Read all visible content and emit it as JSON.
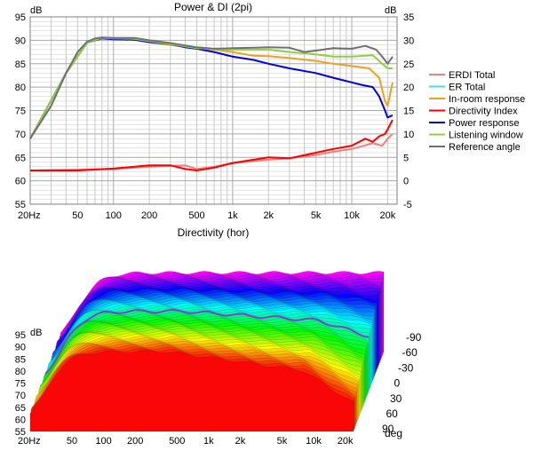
{
  "colors": {
    "grid": "#c8c8c8",
    "grid_major": "#a8a8a8",
    "axis": "#808080",
    "ERDI Total": "#f08080",
    "ER Total": "#40e0e8",
    "In-room response": "#f0a020",
    "Directivity Index": "#ff0000",
    "Power response": "#0000e0",
    "Listening window": "#90d040",
    "Reference angle": "#707070"
  },
  "chart_data": [
    {
      "type": "line",
      "title": "Power & DI (2pi)",
      "ylabel_left": "dB",
      "ylabel_right": "dB",
      "xscale": "log",
      "xlim": [
        20,
        24000
      ],
      "ylim_left": [
        55,
        95
      ],
      "ylim_right": [
        -5,
        35
      ],
      "grid": true,
      "legend_position": "right",
      "x_ticks": [
        {
          "v": 20,
          "label": "20Hz"
        },
        {
          "v": 50,
          "label": "50"
        },
        {
          "v": 100,
          "label": "100"
        },
        {
          "v": 200,
          "label": "200"
        },
        {
          "v": 500,
          "label": "500"
        },
        {
          "v": 1000,
          "label": "1k"
        },
        {
          "v": 2000,
          "label": "2k"
        },
        {
          "v": 5000,
          "label": "5k"
        },
        {
          "v": 10000,
          "label": "10k"
        },
        {
          "v": 20000,
          "label": "20k"
        }
      ],
      "y_ticks_left": [
        95,
        90,
        85,
        80,
        75,
        70,
        65,
        60,
        55
      ],
      "y_ticks_right": [
        35,
        30,
        25,
        20,
        15,
        10,
        5,
        0,
        -5
      ],
      "series": [
        {
          "name": "ERDI Total",
          "axis": "right",
          "points": [
            [
              20,
              2.2
            ],
            [
              100,
              2.5
            ],
            [
              200,
              3
            ],
            [
              400,
              3.3
            ],
            [
              500,
              2.5
            ],
            [
              700,
              3
            ],
            [
              1000,
              3.8
            ],
            [
              2000,
              4.5
            ],
            [
              3000,
              4.8
            ],
            [
              5000,
              5.5
            ],
            [
              7000,
              6.2
            ],
            [
              10000,
              6.8
            ],
            [
              15000,
              8
            ],
            [
              18000,
              7.5
            ],
            [
              20000,
              9
            ],
            [
              22000,
              10
            ]
          ]
        },
        {
          "name": "ER Total",
          "axis": "left",
          "points": []
        },
        {
          "name": "In-room response",
          "axis": "left",
          "points": [
            [
              20,
              69
            ],
            [
              40,
              83
            ],
            [
              60,
              89.5
            ],
            [
              80,
              90.5
            ],
            [
              100,
              90.3
            ],
            [
              150,
              90.2
            ],
            [
              200,
              89.6
            ],
            [
              300,
              89
            ],
            [
              400,
              88.6
            ],
            [
              500,
              88.4
            ],
            [
              700,
              88
            ],
            [
              1000,
              87.5
            ],
            [
              1500,
              86.7
            ],
            [
              2000,
              86.6
            ],
            [
              3000,
              86.2
            ],
            [
              5000,
              85.6
            ],
            [
              7000,
              85
            ],
            [
              10000,
              84.5
            ],
            [
              14000,
              84
            ],
            [
              17000,
              82
            ],
            [
              19000,
              77
            ],
            [
              20000,
              76
            ],
            [
              22000,
              81
            ]
          ]
        },
        {
          "name": "Directivity Index",
          "axis": "right",
          "points": [
            [
              20,
              2.2
            ],
            [
              50,
              2.2
            ],
            [
              100,
              2.6
            ],
            [
              200,
              3.3
            ],
            [
              300,
              3.3
            ],
            [
              400,
              2.5
            ],
            [
              500,
              2.2
            ],
            [
              700,
              2.8
            ],
            [
              1000,
              3.8
            ],
            [
              1500,
              4.5
            ],
            [
              2000,
              5
            ],
            [
              3000,
              4.8
            ],
            [
              5000,
              6
            ],
            [
              7000,
              6.8
            ],
            [
              10000,
              7.5
            ],
            [
              13000,
              9
            ],
            [
              15000,
              8.3
            ],
            [
              17000,
              9.5
            ],
            [
              19000,
              10
            ],
            [
              20000,
              11
            ],
            [
              22000,
              13
            ]
          ]
        },
        {
          "name": "Power response",
          "axis": "left",
          "points": [
            [
              20,
              69
            ],
            [
              40,
              83
            ],
            [
              60,
              89.5
            ],
            [
              80,
              90.4
            ],
            [
              100,
              90.2
            ],
            [
              150,
              90.1
            ],
            [
              200,
              89.6
            ],
            [
              300,
              89.2
            ],
            [
              400,
              88.5
            ],
            [
              500,
              88.2
            ],
            [
              700,
              87.5
            ],
            [
              1000,
              86.5
            ],
            [
              1500,
              85.8
            ],
            [
              2000,
              85
            ],
            [
              3000,
              84
            ],
            [
              5000,
              83
            ],
            [
              7000,
              82
            ],
            [
              10000,
              81
            ],
            [
              12000,
              80.5
            ],
            [
              15000,
              80
            ],
            [
              17000,
              78
            ],
            [
              19000,
              75
            ],
            [
              20000,
              73.5
            ],
            [
              22000,
              74
            ]
          ]
        },
        {
          "name": "Listening window",
          "axis": "left",
          "points": [
            [
              20,
              69
            ],
            [
              40,
              83
            ],
            [
              60,
              89.5
            ],
            [
              80,
              90.5
            ],
            [
              100,
              90.4
            ],
            [
              150,
              90.3
            ],
            [
              200,
              89.8
            ],
            [
              300,
              89.2
            ],
            [
              500,
              88.3
            ],
            [
              700,
              88.1
            ],
            [
              1000,
              88
            ],
            [
              1500,
              88
            ],
            [
              2000,
              88
            ],
            [
              3000,
              87.5
            ],
            [
              5000,
              87
            ],
            [
              7000,
              86.5
            ],
            [
              10000,
              86.5
            ],
            [
              15000,
              86.8
            ],
            [
              18000,
              85
            ],
            [
              20000,
              84
            ],
            [
              22000,
              84
            ]
          ]
        },
        {
          "name": "Reference angle",
          "axis": "left",
          "points": [
            [
              20,
              69
            ],
            [
              30,
              76
            ],
            [
              40,
              83
            ],
            [
              50,
              87.5
            ],
            [
              60,
              89.7
            ],
            [
              70,
              90.4
            ],
            [
              80,
              90.6
            ],
            [
              100,
              90.5
            ],
            [
              150,
              90.5
            ],
            [
              200,
              90
            ],
            [
              300,
              89.4
            ],
            [
              500,
              88.5
            ],
            [
              700,
              88.2
            ],
            [
              1000,
              88.3
            ],
            [
              1500,
              88.4
            ],
            [
              2000,
              88.5
            ],
            [
              3000,
              88.4
            ],
            [
              4000,
              87.5
            ],
            [
              5000,
              87.8
            ],
            [
              7000,
              88.3
            ],
            [
              10000,
              88.2
            ],
            [
              13000,
              88.8
            ],
            [
              16000,
              88
            ],
            [
              18000,
              86.5
            ],
            [
              20000,
              85
            ],
            [
              22000,
              86.5
            ]
          ]
        }
      ]
    },
    {
      "type": "area",
      "title": "Directivity (hor)",
      "ylabel": "dB",
      "xscale": "log",
      "xlim": [
        20,
        24000
      ],
      "ylim": [
        55,
        95
      ],
      "zlabel": "deg",
      "x_ticks": [
        {
          "v": 20,
          "label": "20Hz"
        },
        {
          "v": 50,
          "label": "50"
        },
        {
          "v": 100,
          "label": "100"
        },
        {
          "v": 200,
          "label": "200"
        },
        {
          "v": 500,
          "label": "500"
        },
        {
          "v": 1000,
          "label": "1k"
        },
        {
          "v": 2000,
          "label": "2k"
        },
        {
          "v": 5000,
          "label": "5k"
        },
        {
          "v": 10000,
          "label": "10k"
        },
        {
          "v": 20000,
          "label": "20k"
        }
      ],
      "y_ticks": [
        95,
        90,
        85,
        80,
        75,
        70,
        65,
        60,
        55
      ],
      "z_ticks": [
        -90,
        -60,
        -30,
        0,
        30,
        60,
        90
      ]
    }
  ]
}
